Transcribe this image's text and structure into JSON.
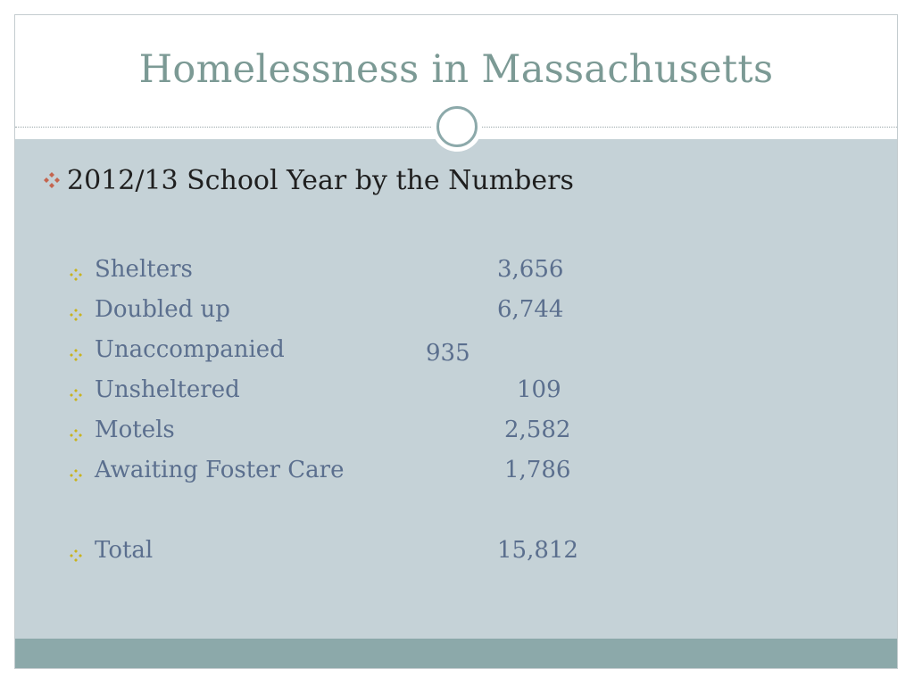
{
  "slide": {
    "title": "Homelessness in Massachusetts",
    "heading": "2012/13 School Year by the Numbers",
    "items": [
      {
        "label": "Shelters",
        "value": "3,656"
      },
      {
        "label": "Doubled up",
        "value": "6,744"
      },
      {
        "label": "Unaccompanied",
        "value": "935"
      },
      {
        "label": "Unsheltered",
        "value": "109"
      },
      {
        "label": "Motels",
        "value": "2,582"
      },
      {
        "label": "Awaiting Foster Care",
        "value": "1,786"
      }
    ],
    "total": {
      "label": "Total",
      "value": "15,812"
    }
  },
  "colors": {
    "title": "#7c9a95",
    "body_background": "#c5d2d7",
    "footer_band": "#8ca9aa",
    "bullet_main": "#c4654f",
    "bullet_sub": "#c9b320",
    "list_text": "#5b6f8e"
  },
  "icons": {
    "heading_bullet": "diamond-bullet-icon",
    "item_bullet": "diamond-bullet-icon"
  }
}
